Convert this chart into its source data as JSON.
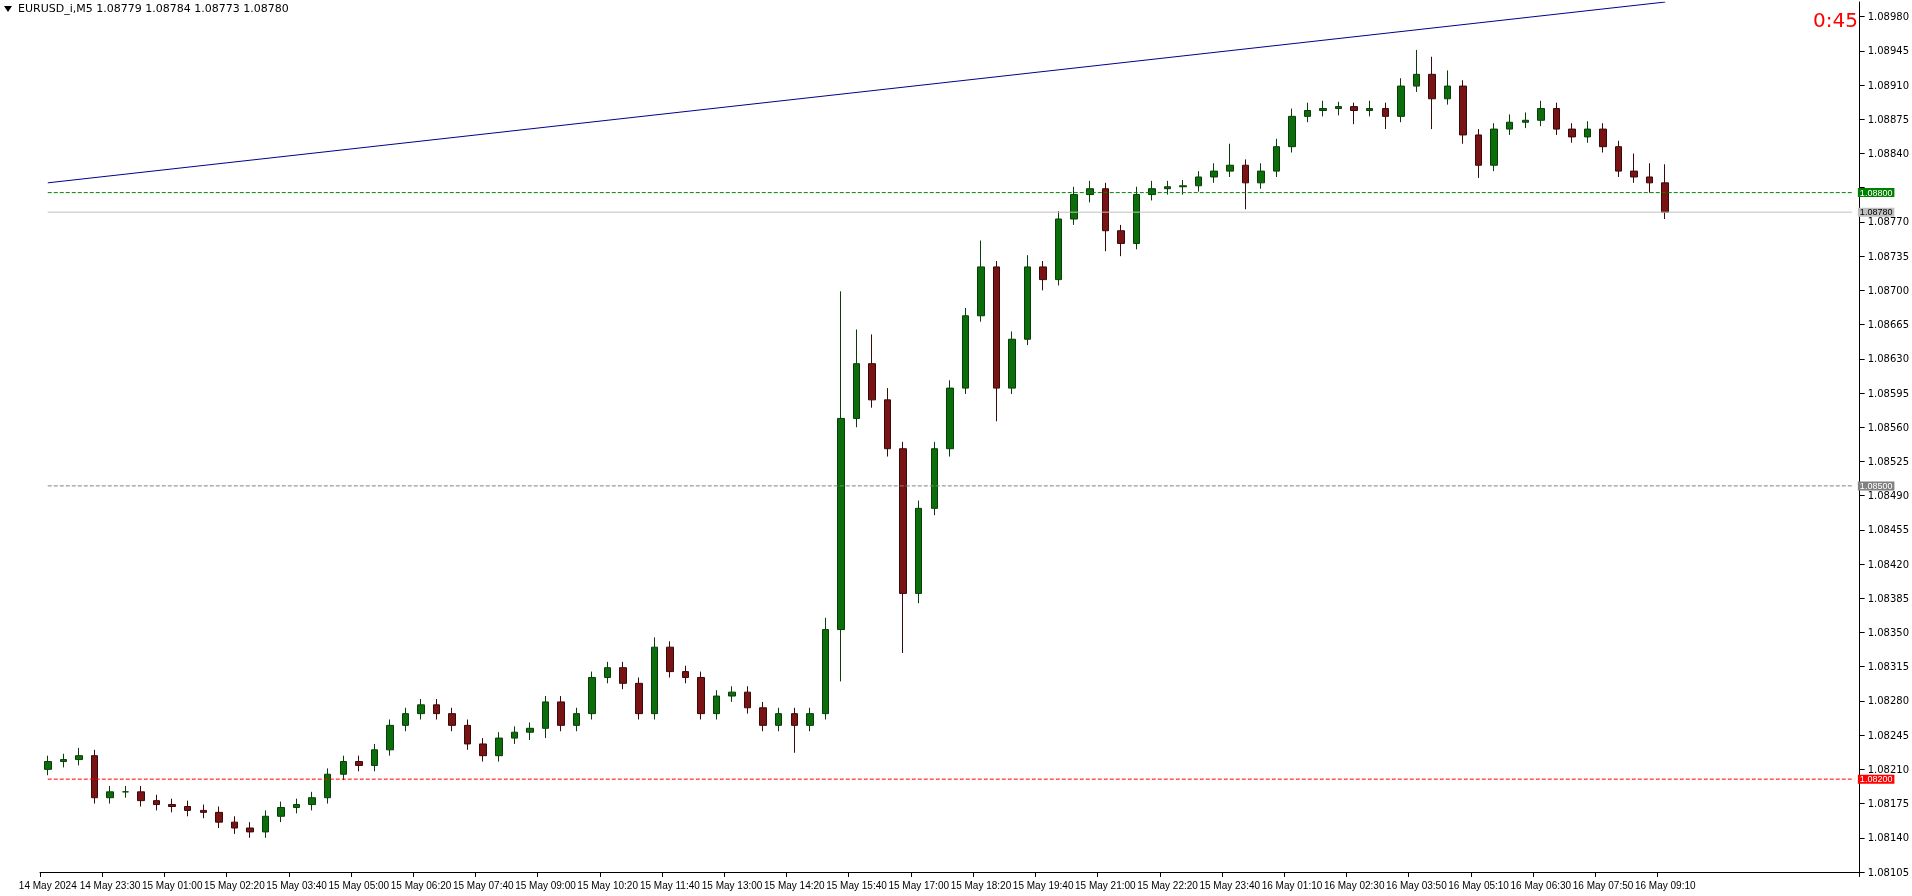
{
  "chart_data": {
    "type": "candlestick",
    "title": "EURUSD_i,M5  1.08779 1.08784 1.08773 1.08780",
    "annotations": [
      "0:45"
    ],
    "categories": [
      "14 May 2024",
      null,
      null,
      null,
      "14 May 23:30",
      null,
      null,
      null,
      "15 May 01:00",
      null,
      null,
      null,
      "15 May 02:20",
      null,
      null,
      null,
      "15 May 03:40",
      null,
      null,
      null,
      "15 May 05:00",
      null,
      null,
      null,
      "15 May 06:20",
      null,
      null,
      null,
      "15 May 07:40",
      null,
      null,
      null,
      "15 May 09:00",
      null,
      null,
      null,
      "15 May 10:20",
      null,
      null,
      null,
      "15 May 11:40",
      null,
      null,
      null,
      "15 May 13:00",
      null,
      null,
      null,
      "15 May 14:20",
      null,
      null,
      null,
      "15 May 15:40",
      null,
      null,
      null,
      "15 May 17:00",
      null,
      null,
      null,
      "15 May 18:20",
      null,
      null,
      null,
      "15 May 19:40",
      null,
      null,
      null,
      "15 May 21:00",
      null,
      null,
      null,
      "15 May 22:20",
      null,
      null,
      null,
      "15 May 23:40",
      null,
      null,
      null,
      "16 May 01:10",
      null,
      null,
      null,
      "16 May 02:30",
      null,
      null,
      null,
      "16 May 03:50",
      null,
      null,
      null,
      "16 May 05:10",
      null,
      null,
      null,
      "16 May 06:30",
      null,
      null,
      null,
      "16 May 07:50",
      null,
      null,
      null,
      "16 May 09:10",
      null,
      null,
      null,
      null,
      null,
      null,
      null,
      null,
      null,
      null,
      null,
      null
    ],
    "ohlc": [
      [
        1.0821,
        1.08224,
        1.08204,
        1.08218
      ],
      [
        1.08218,
        1.08226,
        1.08212,
        1.0822
      ],
      [
        1.0822,
        1.08232,
        1.08214,
        1.08224
      ],
      [
        1.08224,
        1.0823,
        1.08175,
        1.08181
      ],
      [
        1.08181,
        1.08193,
        1.08175,
        1.08187
      ],
      [
        1.08187,
        1.08193,
        1.08181,
        1.08187
      ],
      [
        1.08187,
        1.08193,
        1.08172,
        1.08178
      ],
      [
        1.08178,
        1.08184,
        1.08168,
        1.08174
      ],
      [
        1.08174,
        1.0818,
        1.08166,
        1.08172
      ],
      [
        1.08172,
        1.08178,
        1.08162,
        1.08168
      ],
      [
        1.08168,
        1.08174,
        1.0816,
        1.08166
      ],
      [
        1.08166,
        1.08172,
        1.0815,
        1.08156
      ],
      [
        1.08156,
        1.08162,
        1.08144,
        1.0815
      ],
      [
        1.0815,
        1.08156,
        1.0814,
        1.08146
      ],
      [
        1.08146,
        1.08168,
        1.0814,
        1.08162
      ],
      [
        1.08162,
        1.08177,
        1.08156,
        1.08171
      ],
      [
        1.08171,
        1.0818,
        1.08165,
        1.08174
      ],
      [
        1.08174,
        1.08187,
        1.08168,
        1.08181
      ],
      [
        1.08181,
        1.08211,
        1.08175,
        1.08205
      ],
      [
        1.08205,
        1.08224,
        1.08199,
        1.08218
      ],
      [
        1.08218,
        1.08224,
        1.08208,
        1.08214
      ],
      [
        1.08214,
        1.08236,
        1.08208,
        1.0823
      ],
      [
        1.0823,
        1.08261,
        1.08224,
        1.08255
      ],
      [
        1.08255,
        1.08273,
        1.08249,
        1.08267
      ],
      [
        1.08267,
        1.08282,
        1.08261,
        1.08276
      ],
      [
        1.08276,
        1.08282,
        1.08261,
        1.08267
      ],
      [
        1.08267,
        1.08273,
        1.08249,
        1.08255
      ],
      [
        1.08255,
        1.08261,
        1.0823,
        1.08236
      ],
      [
        1.08236,
        1.08242,
        1.08218,
        1.08224
      ],
      [
        1.08224,
        1.08248,
        1.08218,
        1.08242
      ],
      [
        1.08242,
        1.08254,
        1.08236,
        1.08248
      ],
      [
        1.08248,
        1.08258,
        1.0824,
        1.08252
      ],
      [
        1.08252,
        1.08285,
        1.08242,
        1.08279
      ],
      [
        1.08279,
        1.08285,
        1.08249,
        1.08255
      ],
      [
        1.08255,
        1.08273,
        1.08249,
        1.08267
      ],
      [
        1.08267,
        1.0831,
        1.08261,
        1.08304
      ],
      [
        1.08304,
        1.0832,
        1.08298,
        1.08314
      ],
      [
        1.08314,
        1.0832,
        1.08292,
        1.08298
      ],
      [
        1.08298,
        1.08304,
        1.08261,
        1.08267
      ],
      [
        1.08267,
        1.08345,
        1.08261,
        1.08335
      ],
      [
        1.08335,
        1.08341,
        1.08304,
        1.0831
      ],
      [
        1.0831,
        1.08316,
        1.08298,
        1.08304
      ],
      [
        1.08304,
        1.0831,
        1.08261,
        1.08267
      ],
      [
        1.08267,
        1.08291,
        1.08261,
        1.08285
      ],
      [
        1.08285,
        1.08295,
        1.08279,
        1.08289
      ],
      [
        1.08289,
        1.08295,
        1.08267,
        1.08273
      ],
      [
        1.08273,
        1.08279,
        1.08249,
        1.08255
      ],
      [
        1.08255,
        1.08273,
        1.08249,
        1.08267
      ],
      [
        1.08267,
        1.08273,
        1.08227,
        1.08255
      ],
      [
        1.08255,
        1.08273,
        1.08249,
        1.08267
      ],
      [
        1.08267,
        1.08365,
        1.08261,
        1.08353
      ],
      [
        1.08353,
        1.08699,
        1.083,
        1.08569
      ],
      [
        1.08569,
        1.0866,
        1.0856,
        1.08625
      ],
      [
        1.08625,
        1.08655,
        1.0858,
        1.08588
      ],
      [
        1.08588,
        1.086,
        1.0853,
        1.08538
      ],
      [
        1.08538,
        1.08545,
        1.08329,
        1.0839
      ],
      [
        1.0839,
        1.08485,
        1.0838,
        1.08477
      ],
      [
        1.08477,
        1.08545,
        1.0847,
        1.08538
      ],
      [
        1.08538,
        1.08608,
        1.0853,
        1.086
      ],
      [
        1.086,
        1.08682,
        1.08594,
        1.08674
      ],
      [
        1.08674,
        1.08751,
        1.08668,
        1.08724
      ],
      [
        1.08724,
        1.0873,
        1.08566,
        1.086
      ],
      [
        1.086,
        1.08658,
        1.08594,
        1.0865
      ],
      [
        1.0865,
        1.08736,
        1.08644,
        1.08724
      ],
      [
        1.08724,
        1.0873,
        1.087,
        1.08711
      ],
      [
        1.08711,
        1.08781,
        1.08705,
        1.08773
      ],
      [
        1.08773,
        1.08806,
        1.08767,
        1.08798
      ],
      [
        1.08798,
        1.08812,
        1.0879,
        1.08804
      ],
      [
        1.08804,
        1.0881,
        1.0874,
        1.08761
      ],
      [
        1.08761,
        1.08767,
        1.08735,
        1.08748
      ],
      [
        1.08748,
        1.08806,
        1.08742,
        1.08798
      ],
      [
        1.08798,
        1.08812,
        1.08792,
        1.08804
      ],
      [
        1.08804,
        1.08812,
        1.08798,
        1.08806
      ],
      [
        1.08806,
        1.08813,
        1.08798,
        1.08807
      ],
      [
        1.08807,
        1.08822,
        1.08801,
        1.08816
      ],
      [
        1.08816,
        1.0883,
        1.0881,
        1.08822
      ],
      [
        1.08822,
        1.0885,
        1.08816,
        1.08828
      ],
      [
        1.08828,
        1.08834,
        1.08783,
        1.0881
      ],
      [
        1.0881,
        1.0883,
        1.08804,
        1.08822
      ],
      [
        1.08822,
        1.08855,
        1.08816,
        1.08847
      ],
      [
        1.08847,
        1.08886,
        1.08841,
        1.08878
      ],
      [
        1.08878,
        1.08892,
        1.08872,
        1.08884
      ],
      [
        1.08884,
        1.08894,
        1.08878,
        1.08886
      ],
      [
        1.08886,
        1.08893,
        1.08879,
        1.08888
      ],
      [
        1.08888,
        1.08892,
        1.0887,
        1.08884
      ],
      [
        1.08884,
        1.08894,
        1.08878,
        1.08886
      ],
      [
        1.08886,
        1.08892,
        1.08865,
        1.08878
      ],
      [
        1.08878,
        1.08917,
        1.08872,
        1.08909
      ],
      [
        1.08909,
        1.08946,
        1.08903,
        1.08921
      ],
      [
        1.08921,
        1.08939,
        1.08865,
        1.08896
      ],
      [
        1.08896,
        1.08925,
        1.0889,
        1.08909
      ],
      [
        1.08909,
        1.08915,
        1.0885,
        1.08859
      ],
      [
        1.08859,
        1.08865,
        1.08815,
        1.08828
      ],
      [
        1.08828,
        1.08871,
        1.08822,
        1.08865
      ],
      [
        1.08865,
        1.0888,
        1.08859,
        1.08872
      ],
      [
        1.08872,
        1.08882,
        1.08866,
        1.08874
      ],
      [
        1.08874,
        1.08894,
        1.08868,
        1.08886
      ],
      [
        1.08886,
        1.08892,
        1.08859,
        1.08865
      ],
      [
        1.08865,
        1.08871,
        1.08851,
        1.08857
      ],
      [
        1.08857,
        1.08873,
        1.08851,
        1.08865
      ],
      [
        1.08865,
        1.08871,
        1.08841,
        1.08847
      ],
      [
        1.08847,
        1.08853,
        1.08816,
        1.08822
      ],
      [
        1.08822,
        1.0884,
        1.0881,
        1.08816
      ],
      [
        1.08816,
        1.0883,
        1.088,
        1.0881
      ],
      [
        1.0881,
        1.08829,
        1.08773,
        1.0878
      ],
      null,
      null,
      null,
      null,
      null,
      null,
      null,
      null,
      null,
      null,
      null,
      null
    ],
    "series": [
      {
        "type": "line",
        "x": [
          "14 May 2024",
          "16 May 09:10"
        ],
        "values": [
          1.0881,
          1.08995
        ],
        "color": "#00008b"
      }
    ],
    "ylim": [
      1.08105,
      1.08995
    ],
    "yticks": [
      {
        "value": 1.0898,
        "label": "1.08980"
      },
      {
        "value": 1.08945,
        "label": "1.08945"
      },
      {
        "value": 1.0891,
        "label": "1.08910"
      },
      {
        "value": 1.08875,
        "label": "1.08875"
      },
      {
        "value": 1.0884,
        "label": "1.08840"
      },
      {
        "value": 1.08805,
        "label": null
      },
      {
        "value": 1.0877,
        "label": "1.08770"
      },
      {
        "value": 1.08735,
        "label": "1.08735"
      },
      {
        "value": 1.087,
        "label": "1.08700"
      },
      {
        "value": 1.08665,
        "label": "1.08665"
      },
      {
        "value": 1.0863,
        "label": "1.08630"
      },
      {
        "value": 1.08595,
        "label": "1.08595"
      },
      {
        "value": 1.0856,
        "label": "1.08560"
      },
      {
        "value": 1.08525,
        "label": "1.08525"
      },
      {
        "value": 1.0849,
        "label": "1.08490"
      },
      {
        "value": 1.08455,
        "label": "1.08455"
      },
      {
        "value": 1.0842,
        "label": "1.08420"
      },
      {
        "value": 1.08385,
        "label": "1.08385"
      },
      {
        "value": 1.0835,
        "label": "1.08350"
      },
      {
        "value": 1.08315,
        "label": "1.08315"
      },
      {
        "value": 1.0828,
        "label": "1.08280"
      },
      {
        "value": 1.08245,
        "label": "1.08245"
      },
      {
        "value": 1.0821,
        "label": "1.08210"
      },
      {
        "value": 1.08175,
        "label": "1.08175"
      },
      {
        "value": 1.0814,
        "label": "1.08140"
      },
      {
        "value": 1.08105,
        "label": "1.08105"
      }
    ],
    "ref_lines": [
      {
        "axis": "y",
        "value": 1.088,
        "label": "1.08800",
        "color": "#008000",
        "line_style": "dashed"
      },
      {
        "axis": "y",
        "value": 1.0878,
        "label": "1.08780",
        "color": "#c0c0c0",
        "line_style": "solid"
      },
      {
        "axis": "y",
        "value": 1.085,
        "label": "1.08500",
        "color": "#808080",
        "line_style": "dashed"
      },
      {
        "axis": "y",
        "value": 1.082,
        "label": "1.08200",
        "color": "#ff0000",
        "line_style": "dashed"
      }
    ]
  }
}
